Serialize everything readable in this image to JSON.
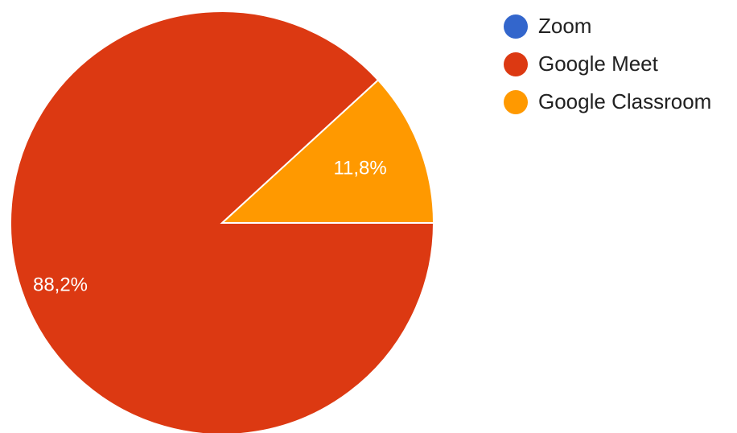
{
  "chart_data": {
    "type": "pie",
    "categories": [
      "Zoom",
      "Google Meet",
      "Google Classroom"
    ],
    "values": [
      0,
      88.2,
      11.8
    ],
    "data_labels": [
      "",
      "88,2%",
      "11,8%"
    ],
    "colors": [
      "#3366cc",
      "#dc3912",
      "#ff9900"
    ],
    "legend_position": "top-right",
    "title": ""
  }
}
